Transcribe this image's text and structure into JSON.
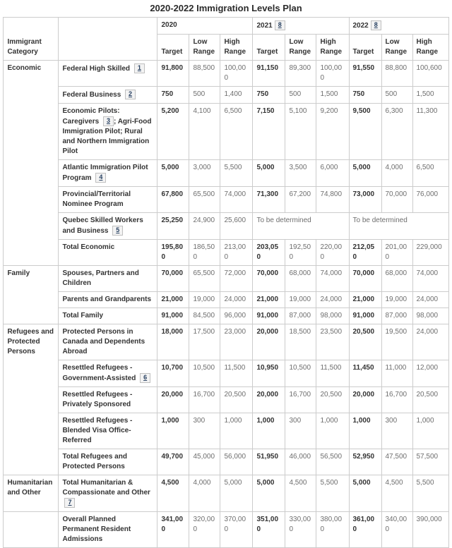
{
  "page": {
    "title": "2020-2022 Immigration Levels Plan"
  },
  "colors": {
    "border": "#cccccc",
    "text_strong": "#333333",
    "text_muted": "#6e6e6e",
    "footnote_link": "#284162",
    "footnote_bg": "#f3f3f3",
    "footnote_border": "#bfbfbf",
    "page_bg": "#ffffff"
  },
  "table": {
    "corner_header": "Immigrant Category",
    "year_groups": [
      {
        "label": "2020",
        "footnote": ""
      },
      {
        "label": "2021",
        "footnote": "8"
      },
      {
        "label": "2022",
        "footnote": "8"
      }
    ],
    "sub_headers": [
      "Target",
      "Low Range",
      "High Range"
    ],
    "rows": [
      {
        "category": "Economic",
        "category_rowspan": 7,
        "program": [
          {
            "t": "Federal High Skilled "
          },
          {
            "fn": "1"
          }
        ],
        "cells": [
          "91,800",
          "88,500",
          "100,000",
          "91,150",
          "89,300",
          "100,000",
          "91,550",
          "88,800",
          "100,600"
        ]
      },
      {
        "program": [
          {
            "t": "Federal Business "
          },
          {
            "fn": "2"
          }
        ],
        "cells": [
          "750",
          "500",
          "1,400",
          "750",
          "500",
          "1,500",
          "750",
          "500",
          "1,500"
        ]
      },
      {
        "program": [
          {
            "t": "Economic Pilots: Caregivers "
          },
          {
            "fn": "3"
          },
          {
            "t": "; Agri-Food Immigration Pilot; Rural and Northern Immigration Pilot"
          }
        ],
        "cells": [
          "5,200",
          "4,100",
          "6,500",
          "7,150",
          "5,100",
          "9,200",
          "9,500",
          "6,300",
          "11,300"
        ]
      },
      {
        "program": [
          {
            "t": "Atlantic Immigration Pilot Program "
          },
          {
            "fn": "4"
          }
        ],
        "cells": [
          "5,000",
          "3,000",
          "5,500",
          "5,000",
          "3,500",
          "6,000",
          "5,000",
          "4,000",
          "6,500"
        ]
      },
      {
        "program": [
          {
            "t": "Provincial/Territorial Nominee Program"
          }
        ],
        "cells": [
          "67,800",
          "65,500",
          "74,000",
          "71,300",
          "67,200",
          "74,800",
          "73,000",
          "70,000",
          "76,000"
        ]
      },
      {
        "program": [
          {
            "t": "Quebec Skilled Workers and Business "
          },
          {
            "fn": "5"
          }
        ],
        "cells": [
          "25,250",
          "24,900",
          "25,600",
          {
            "v": "To be determined",
            "span": 3
          },
          {
            "v": "To be determined",
            "span": 3
          }
        ]
      },
      {
        "program": [
          {
            "t": "Total Economic"
          }
        ],
        "cells": [
          "195,800",
          "186,500",
          "213,000",
          "203,050",
          "192,500",
          "220,000",
          "212,050",
          "201,000",
          "229,000"
        ]
      },
      {
        "category": "Family",
        "category_rowspan": 3,
        "program": [
          {
            "t": "Spouses, Partners and Children"
          }
        ],
        "cells": [
          "70,000",
          "65,500",
          "72,000",
          "70,000",
          "68,000",
          "74,000",
          "70,000",
          "68,000",
          "74,000"
        ]
      },
      {
        "program": [
          {
            "t": "Parents and Grandparents"
          }
        ],
        "cells": [
          "21,000",
          "19,000",
          "24,000",
          "21,000",
          "19,000",
          "24,000",
          "21,000",
          "19,000",
          "24,000"
        ]
      },
      {
        "program": [
          {
            "t": "Total Family"
          }
        ],
        "cells": [
          "91,000",
          "84,500",
          "96,000",
          "91,000",
          "87,000",
          "98,000",
          "91,000",
          "87,000",
          "98,000"
        ]
      },
      {
        "category": "Refugees and Protected Persons",
        "category_rowspan": 5,
        "program": [
          {
            "t": "Protected Persons in Canada and Dependents Abroad"
          }
        ],
        "cells": [
          "18,000",
          "17,500",
          "23,000",
          "20,000",
          "18,500",
          "23,500",
          "20,500",
          "19,500",
          "24,000"
        ]
      },
      {
        "program": [
          {
            "t": "Resettled Refugees - Government-Assisted "
          },
          {
            "fn": "6"
          }
        ],
        "cells": [
          "10,700",
          "10,500",
          "11,500",
          "10,950",
          "10,500",
          "11,500",
          "11,450",
          "11,000",
          "12,000"
        ]
      },
      {
        "program": [
          {
            "t": "Resettled Refugees - Privately Sponsored"
          }
        ],
        "cells": [
          "20,000",
          "16,700",
          "20,500",
          "20,000",
          "16,700",
          "20,500",
          "20,000",
          "16,700",
          "20,500"
        ]
      },
      {
        "program": [
          {
            "t": "Resettled Refugees - Blended Visa Office-Referred"
          }
        ],
        "cells": [
          "1,000",
          "300",
          "1,000",
          "1,000",
          "300",
          "1,000",
          "1,000",
          "300",
          "1,000"
        ]
      },
      {
        "program": [
          {
            "t": "Total Refugees and Protected Persons"
          }
        ],
        "cells": [
          "49,700",
          "45,000",
          "56,000",
          "51,950",
          "46,000",
          "56,500",
          "52,950",
          "47,500",
          "57,500"
        ]
      },
      {
        "category": "Humanitarian and Other",
        "category_rowspan": 1,
        "program": [
          {
            "t": "Total Humanitarian & Compassionate and Other "
          },
          {
            "fn": "7"
          }
        ],
        "cells": [
          "4,500",
          "4,000",
          "5,000",
          "5,000",
          "4,500",
          "5,500",
          "5,000",
          "4,500",
          "5,500"
        ]
      },
      {
        "category": "",
        "category_rowspan": 1,
        "program": [
          {
            "t": "Overall Planned Permanent Resident Admissions"
          }
        ],
        "cells": [
          "341,000",
          "320,000",
          "370,000",
          "351,000",
          "330,000",
          "380,000",
          "361,000",
          "340,000",
          "390,000"
        ]
      }
    ]
  }
}
